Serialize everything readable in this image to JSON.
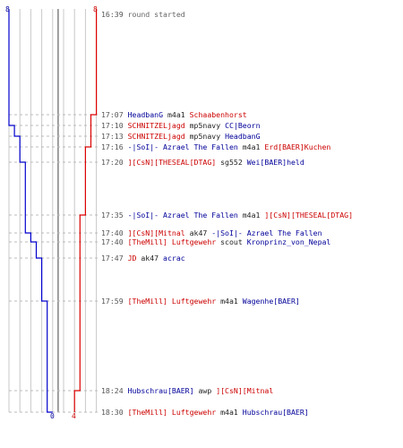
{
  "colors": {
    "red": "#dd0000",
    "blue": "#0000cc",
    "grid": "#c8c8c8",
    "center": "#777777"
  },
  "scores": {
    "blue_start": "8",
    "red_start": "8",
    "blue_end": "0",
    "red_end": "4"
  },
  "events": [
    {
      "time": "16:39",
      "parts": [
        {
          "text": "round started",
          "color": "gray"
        }
      ]
    },
    {
      "time": "17:07",
      "parts": [
        {
          "text": "HeadbanG",
          "color": "blue"
        },
        {
          "text": " m4a1 ",
          "color": "black"
        },
        {
          "text": "Schaabenhorst",
          "color": "red"
        }
      ]
    },
    {
      "time": "17:10",
      "parts": [
        {
          "text": "SCHNITZELjagd",
          "color": "red"
        },
        {
          "text": " mp5navy ",
          "color": "black"
        },
        {
          "text": "CC|Beorn",
          "color": "blue"
        }
      ]
    },
    {
      "time": "17:13",
      "parts": [
        {
          "text": "SCHNITZELjagd",
          "color": "red"
        },
        {
          "text": " mp5navy ",
          "color": "black"
        },
        {
          "text": "HeadbanG",
          "color": "blue"
        }
      ]
    },
    {
      "time": "17:16",
      "parts": [
        {
          "text": "-|SoI|- Azrael The Fallen",
          "color": "blue"
        },
        {
          "text": " m4a1 ",
          "color": "black"
        },
        {
          "text": "Erd[BAER]Kuchen",
          "color": "red"
        }
      ]
    },
    {
      "time": "17:20",
      "parts": [
        {
          "text": "][CsN][THESEAL[DTAG]",
          "color": "red"
        },
        {
          "text": " sg552 ",
          "color": "black"
        },
        {
          "text": "Wei[BAER]held",
          "color": "blue"
        }
      ]
    },
    {
      "time": "17:35",
      "parts": [
        {
          "text": "-|SoI|- Azrael The Fallen",
          "color": "blue"
        },
        {
          "text": " m4a1 ",
          "color": "black"
        },
        {
          "text": "][CsN][THESEAL[DTAG]",
          "color": "red"
        }
      ]
    },
    {
      "time": "17:40",
      "parts": [
        {
          "text": "][CsN][Mitnal",
          "color": "red"
        },
        {
          "text": " ak47 ",
          "color": "black"
        },
        {
          "text": "-|SoI|- Azrael The Fallen",
          "color": "blue"
        }
      ]
    },
    {
      "time": "17:40",
      "parts": [
        {
          "text": "[TheMill] Luftgewehr",
          "color": "red"
        },
        {
          "text": " scout ",
          "color": "black"
        },
        {
          "text": "Kronprinz_von_Nepal",
          "color": "blue"
        }
      ]
    },
    {
      "time": "17:47",
      "parts": [
        {
          "text": "JD",
          "color": "red"
        },
        {
          "text": " ak47 ",
          "color": "black"
        },
        {
          "text": "acrac",
          "color": "blue"
        }
      ]
    },
    {
      "time": "17:59",
      "parts": [
        {
          "text": "[TheMill] Luftgewehr",
          "color": "red"
        },
        {
          "text": " m4a1 ",
          "color": "black"
        },
        {
          "text": "Wagenhe[BAER]",
          "color": "blue"
        }
      ]
    },
    {
      "time": "18:24",
      "parts": [
        {
          "text": "Hubschrau[BAER]",
          "color": "blue"
        },
        {
          "text": " awp ",
          "color": "black"
        },
        {
          "text": "][CsN][Mitnal",
          "color": "red"
        }
      ]
    },
    {
      "time": "18:30",
      "parts": [
        {
          "text": "[TheMill] Luftgewehr",
          "color": "red"
        },
        {
          "text": " m4a1 ",
          "color": "black"
        },
        {
          "text": "Hubschrau[BAER]",
          "color": "blue"
        }
      ]
    }
  ],
  "blue_count": [
    8,
    8,
    7,
    6,
    6,
    5,
    5,
    4,
    3,
    2,
    1,
    1,
    0
  ],
  "red_count": [
    8,
    7,
    7,
    7,
    6,
    6,
    5,
    5,
    5,
    5,
    5,
    4,
    4
  ]
}
